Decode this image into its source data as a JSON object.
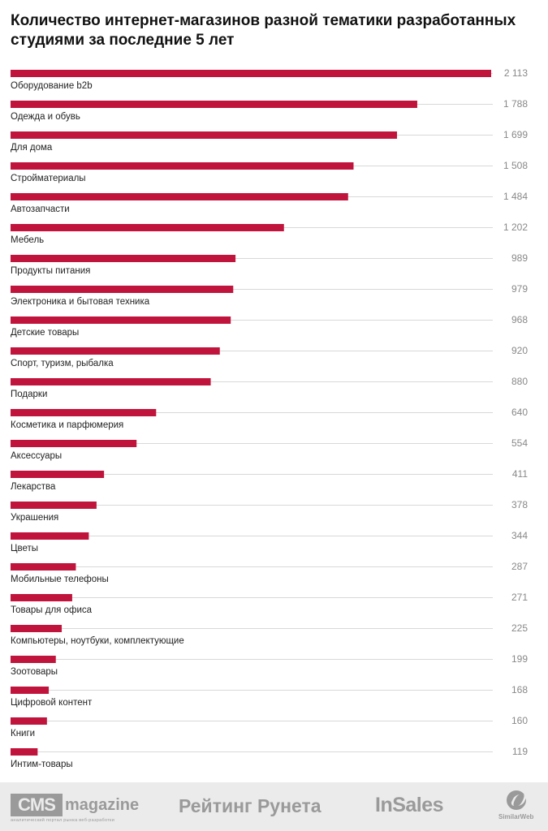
{
  "chart_data": {
    "type": "bar",
    "orientation": "horizontal",
    "title": "Количество интернет-магазинов разной тематики разработанных студиями за последние 5 лет",
    "categories": [
      "Оборудование b2b",
      "Одежда и обувь",
      "Для дома",
      "Стройматериалы",
      "Автозапчасти",
      "Мебель",
      "Продукты питания",
      "Электроника и бытовая техника",
      "Детские товары",
      "Спорт, туризм, рыбалка",
      "Подарки",
      "Косметика и парфюмерия",
      "Аксессуары",
      "Лекарства",
      "Украшения",
      "Цветы",
      "Мобильные телефоны",
      "Товары для офиса",
      "Компьютеры, ноутбуки, комплектующие",
      "Зоотовары",
      "Цифровой контент",
      "Книги",
      "Интим-товары"
    ],
    "values": [
      2113,
      1788,
      1699,
      1508,
      1484,
      1202,
      989,
      979,
      968,
      920,
      880,
      640,
      554,
      411,
      378,
      344,
      287,
      271,
      225,
      199,
      168,
      160,
      119
    ],
    "value_labels": [
      "2 113",
      "1 788",
      "1 699",
      "1 508",
      "1 484",
      "1 202",
      "989",
      "979",
      "968",
      "920",
      "880",
      "640",
      "554",
      "411",
      "378",
      "344",
      "287",
      "271",
      "225",
      "199",
      "168",
      "160",
      "119"
    ],
    "xlim": [
      0,
      2113
    ],
    "bar_color": "#c0143c",
    "grid": false,
    "legend": "none"
  },
  "footer": {
    "cms_box": "CMS",
    "cms_word": "magazine",
    "cms_subtitle": "аналитический портал рынка веб-разработки",
    "runeta": "Рейтинг Рунета",
    "insales": "InSales",
    "similarweb": "SimilarWeb"
  }
}
